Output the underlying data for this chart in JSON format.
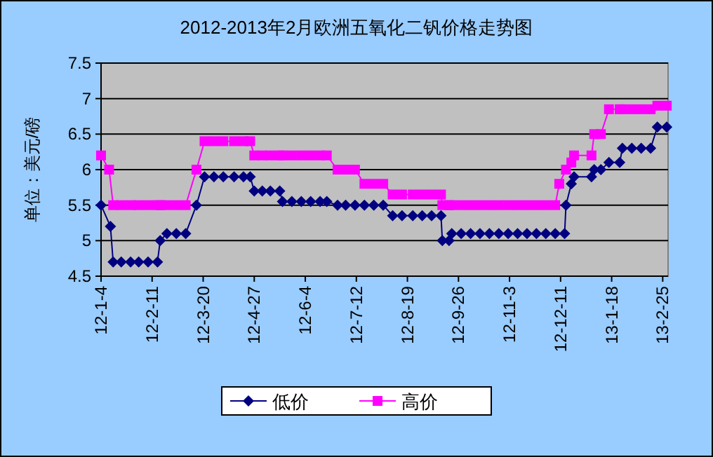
{
  "chart_data": {
    "type": "line",
    "title": "2012-2013年2月欧洲五氧化二钒价格走势图",
    "ylabel": "单位：美元/磅",
    "ylim": [
      4.5,
      7.5
    ],
    "yticks": [
      4.5,
      5,
      5.5,
      6,
      6.5,
      7,
      7.5
    ],
    "xlim": [
      "2012-01-04",
      "2013-03-01"
    ],
    "xticks": [
      {
        "value": "2012-01-04",
        "label": "12-1-4"
      },
      {
        "value": "2012-02-11",
        "label": "12-2-11"
      },
      {
        "value": "2012-03-20",
        "label": "12-3-20"
      },
      {
        "value": "2012-04-27",
        "label": "12-4-27"
      },
      {
        "value": "2012-06-04",
        "label": "12-6-4"
      },
      {
        "value": "2012-07-12",
        "label": "12-7-12"
      },
      {
        "value": "2012-08-19",
        "label": "12-8-19"
      },
      {
        "value": "2012-09-26",
        "label": "12-9-26"
      },
      {
        "value": "2012-11-03",
        "label": "12-11-3"
      },
      {
        "value": "2012-12-11",
        "label": "12-12-11"
      },
      {
        "value": "2013-01-18",
        "label": "13-1-18"
      },
      {
        "value": "2013-02-25",
        "label": "13-2-25"
      }
    ],
    "grid": "y",
    "legend": "bottom",
    "line_style": "solid",
    "series": [
      {
        "name": "低价",
        "color": "#000080",
        "marker": "diamond",
        "x": [
          "2012-01-04",
          "2012-01-11",
          "2012-01-13",
          "2012-01-19",
          "2012-01-26",
          "2012-02-01",
          "2012-02-08",
          "2012-02-15",
          "2012-02-17",
          "2012-02-22",
          "2012-02-29",
          "2012-03-07",
          "2012-03-15",
          "2012-03-21",
          "2012-03-28",
          "2012-04-04",
          "2012-04-12",
          "2012-04-19",
          "2012-04-24",
          "2012-04-27",
          "2012-05-03",
          "2012-05-09",
          "2012-05-16",
          "2012-05-18",
          "2012-05-25",
          "2012-06-01",
          "2012-06-08",
          "2012-06-15",
          "2012-06-20",
          "2012-06-28",
          "2012-07-04",
          "2012-07-11",
          "2012-07-18",
          "2012-07-25",
          "2012-08-01",
          "2012-08-08",
          "2012-08-15",
          "2012-08-23",
          "2012-08-30",
          "2012-09-06",
          "2012-09-13",
          "2012-09-14",
          "2012-09-19",
          "2012-09-21",
          "2012-09-28",
          "2012-10-05",
          "2012-10-12",
          "2012-10-19",
          "2012-10-26",
          "2012-11-02",
          "2012-11-09",
          "2012-11-16",
          "2012-11-23",
          "2012-11-30",
          "2012-12-07",
          "2012-12-14",
          "2012-12-15",
          "2012-12-19",
          "2012-12-21",
          "2013-01-03",
          "2013-01-05",
          "2013-01-10",
          "2013-01-16",
          "2013-01-24",
          "2013-01-26",
          "2013-02-02",
          "2013-02-09",
          "2013-02-16",
          "2013-02-21",
          "2013-02-28"
        ],
        "values": [
          5.5,
          5.2,
          4.7,
          4.7,
          4.7,
          4.7,
          4.7,
          4.7,
          5.0,
          5.1,
          5.1,
          5.1,
          5.5,
          5.9,
          5.9,
          5.9,
          5.9,
          5.9,
          5.9,
          5.7,
          5.7,
          5.7,
          5.7,
          5.55,
          5.55,
          5.55,
          5.55,
          5.55,
          5.55,
          5.5,
          5.5,
          5.5,
          5.5,
          5.5,
          5.5,
          5.35,
          5.35,
          5.35,
          5.35,
          5.35,
          5.35,
          5.0,
          5.0,
          5.1,
          5.1,
          5.1,
          5.1,
          5.1,
          5.1,
          5.1,
          5.1,
          5.1,
          5.1,
          5.1,
          5.1,
          5.1,
          5.5,
          5.8,
          5.9,
          5.9,
          6.0,
          6.0,
          6.1,
          6.1,
          6.3,
          6.3,
          6.3,
          6.3,
          6.6,
          6.6
        ]
      },
      {
        "name": "高价",
        "color": "#ff00ff",
        "marker": "square",
        "x": [
          "2012-01-04",
          "2012-01-10",
          "2012-01-13",
          "2012-01-19",
          "2012-01-26",
          "2012-02-01",
          "2012-02-08",
          "2012-02-15",
          "2012-02-17",
          "2012-02-22",
          "2012-02-29",
          "2012-03-07",
          "2012-03-15",
          "2012-03-21",
          "2012-03-28",
          "2012-04-04",
          "2012-04-12",
          "2012-04-19",
          "2012-04-24",
          "2012-04-27",
          "2012-05-03",
          "2012-05-09",
          "2012-05-16",
          "2012-05-18",
          "2012-05-25",
          "2012-06-01",
          "2012-06-08",
          "2012-06-15",
          "2012-06-20",
          "2012-06-28",
          "2012-07-04",
          "2012-07-11",
          "2012-07-18",
          "2012-07-25",
          "2012-08-01",
          "2012-08-08",
          "2012-08-15",
          "2012-08-23",
          "2012-08-30",
          "2012-09-06",
          "2012-09-13",
          "2012-09-14",
          "2012-09-19",
          "2012-09-21",
          "2012-09-28",
          "2012-10-05",
          "2012-10-12",
          "2012-10-19",
          "2012-10-26",
          "2012-11-02",
          "2012-11-09",
          "2012-11-16",
          "2012-11-23",
          "2012-11-30",
          "2012-12-07",
          "2012-12-10",
          "2012-12-15",
          "2012-12-19",
          "2012-12-21",
          "2013-01-03",
          "2013-01-05",
          "2013-01-10",
          "2013-01-16",
          "2013-01-24",
          "2013-01-26",
          "2013-02-02",
          "2013-02-09",
          "2013-02-16",
          "2013-02-21",
          "2013-02-28"
        ],
        "values": [
          6.2,
          6.0,
          5.5,
          5.5,
          5.5,
          5.5,
          5.5,
          5.5,
          5.5,
          5.5,
          5.5,
          5.5,
          6.0,
          6.4,
          6.4,
          6.4,
          6.4,
          6.4,
          6.4,
          6.2,
          6.2,
          6.2,
          6.2,
          6.2,
          6.2,
          6.2,
          6.2,
          6.2,
          6.2,
          6.0,
          6.0,
          6.0,
          5.8,
          5.8,
          5.8,
          5.65,
          5.65,
          5.65,
          5.65,
          5.65,
          5.65,
          5.5,
          5.5,
          5.5,
          5.5,
          5.5,
          5.5,
          5.5,
          5.5,
          5.5,
          5.5,
          5.5,
          5.5,
          5.5,
          5.5,
          5.8,
          6.0,
          6.1,
          6.2,
          6.2,
          6.5,
          6.5,
          6.85,
          6.85,
          6.85,
          6.85,
          6.85,
          6.85,
          6.9,
          6.9
        ]
      }
    ]
  }
}
